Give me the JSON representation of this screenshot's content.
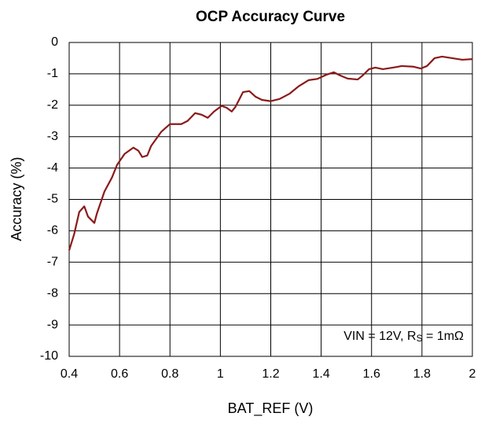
{
  "chart_data": {
    "type": "line",
    "title": "OCP Accuracy Curve",
    "xlabel": "BAT_REF (V)",
    "ylabel": "Accuracy (%)",
    "annotation": [
      "VIN = 12V, R",
      "S",
      " = 1mΩ"
    ],
    "x": [
      0.4,
      0.42,
      0.44,
      0.46,
      0.475,
      0.5,
      0.51,
      0.54,
      0.57,
      0.59,
      0.62,
      0.655,
      0.675,
      0.69,
      0.71,
      0.725,
      0.765,
      0.8,
      0.845,
      0.87,
      0.9,
      0.925,
      0.95,
      0.975,
      1.005,
      1.025,
      1.045,
      1.06,
      1.09,
      1.115,
      1.14,
      1.165,
      1.2,
      1.235,
      1.275,
      1.31,
      1.35,
      1.385,
      1.42,
      1.45,
      1.475,
      1.505,
      1.545,
      1.565,
      1.59,
      1.615,
      1.645,
      1.685,
      1.72,
      1.765,
      1.795,
      1.82,
      1.85,
      1.88,
      1.92,
      1.96,
      2.0
    ],
    "series": [
      {
        "name": "Accuracy",
        "color": "#8b1a1a",
        "values": [
          -6.62,
          -6.1,
          -5.4,
          -5.22,
          -5.55,
          -5.75,
          -5.45,
          -4.75,
          -4.3,
          -3.9,
          -3.55,
          -3.35,
          -3.45,
          -3.65,
          -3.6,
          -3.3,
          -2.85,
          -2.6,
          -2.6,
          -2.5,
          -2.25,
          -2.3,
          -2.4,
          -2.2,
          -2.02,
          -2.08,
          -2.2,
          -2.05,
          -1.58,
          -1.55,
          -1.73,
          -1.83,
          -1.87,
          -1.8,
          -1.63,
          -1.4,
          -1.2,
          -1.16,
          -1.03,
          -0.95,
          -1.05,
          -1.15,
          -1.18,
          -1.05,
          -0.85,
          -0.8,
          -0.85,
          -0.8,
          -0.75,
          -0.77,
          -0.83,
          -0.75,
          -0.5,
          -0.45,
          -0.5,
          -0.55,
          -0.53
        ]
      }
    ],
    "xlim": [
      0.4,
      2
    ],
    "ylim": [
      -10,
      0
    ],
    "xticks": [
      0.4,
      0.6,
      0.8,
      1,
      1.2,
      1.4,
      1.6,
      1.8,
      2
    ],
    "yticks": [
      0,
      -1,
      -2,
      -3,
      -4,
      -5,
      -6,
      -7,
      -8,
      -9,
      -10
    ],
    "grid": true
  }
}
